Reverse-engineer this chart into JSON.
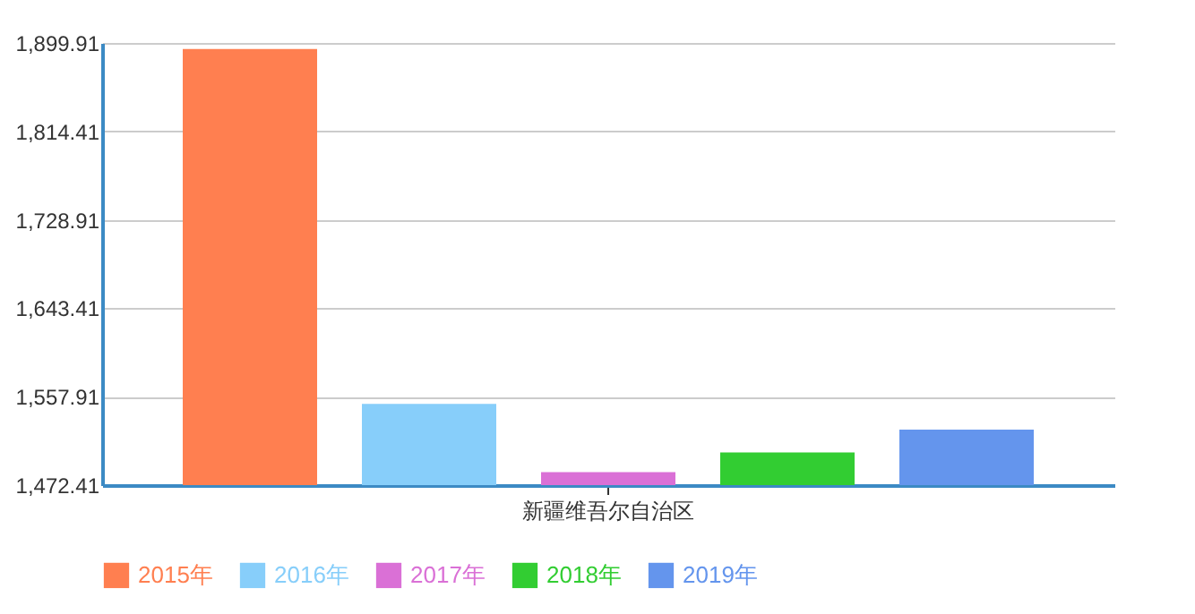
{
  "chart_data": {
    "type": "bar",
    "categories": [
      "新疆维吾尔自治区"
    ],
    "series": [
      {
        "name": "2015年",
        "color": "#ff7f50",
        "values": [
          1894
        ]
      },
      {
        "name": "2016年",
        "color": "#87cefa",
        "values": [
          1551
        ]
      },
      {
        "name": "2017年",
        "color": "#da70d6",
        "values": [
          1485
        ]
      },
      {
        "name": "2018年",
        "color": "#32cd32",
        "values": [
          1504
        ]
      },
      {
        "name": "2019年",
        "color": "#6495ed",
        "values": [
          1526
        ]
      }
    ],
    "ylim": [
      1472.41,
      1899.91
    ],
    "yticks": [
      {
        "value": 1472.41,
        "label": "1,472.41"
      },
      {
        "value": 1557.91,
        "label": "1,557.91"
      },
      {
        "value": 1643.41,
        "label": "1,643.41"
      },
      {
        "value": 1728.91,
        "label": "1,728.91"
      },
      {
        "value": 1814.41,
        "label": "1,814.41"
      },
      {
        "value": 1899.91,
        "label": "1,899.91"
      }
    ],
    "grid": "y",
    "legend": "bottom"
  }
}
